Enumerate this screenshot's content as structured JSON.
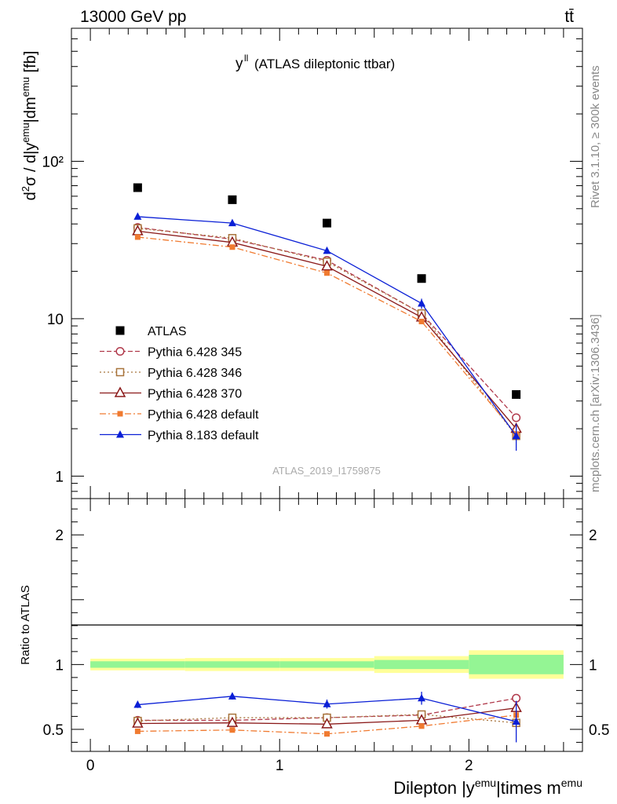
{
  "header": {
    "energy_label": "13000 GeV pp",
    "process_label": "tt̄"
  },
  "side_labels": {
    "rivet": "Rivet 3.1.10, ≥ 300k events",
    "mcplots": "mcplots.cern.ch [arXiv:1306.3436]"
  },
  "colors": {
    "atlas": "#000000",
    "p345": "#b0384a",
    "p346": "#a8743c",
    "p370": "#8b1a1a",
    "p6def": "#f07a30",
    "p8": "#0a1fd6",
    "band_inner": "#94f594",
    "band_outer": "#ffff99"
  },
  "chart_data": [
    {
      "type": "line",
      "panel": "main",
      "title_prefix": "y",
      "title_superscript": "ll",
      "title": "(ATLAS dileptonic ttbar)",
      "ylabel": "d²σ / d|y^emu|dm^emu [fb]",
      "yscale": "log",
      "ylim": [
        0.72,
        700
      ],
      "xlim": [
        -0.1,
        2.6
      ],
      "yticks": [
        {
          "value": 1,
          "label": "1"
        },
        {
          "value": 10,
          "label": "10"
        },
        {
          "value": 100,
          "label": "10²"
        }
      ],
      "watermark": "ATLAS_2019_I1759875",
      "x": [
        0.25,
        0.75,
        1.25,
        1.75,
        2.25
      ],
      "legend_position": "center-left",
      "series": [
        {
          "key": "atlas",
          "name": "ATLAS",
          "marker": "square",
          "values": [
            68,
            57,
            40.5,
            18,
            3.3
          ]
        },
        {
          "key": "p345",
          "name": "Pythia 6.428 345",
          "marker": "open-circle",
          "dash": "dashed",
          "values": [
            38,
            32,
            23.5,
            10.8,
            2.35
          ]
        },
        {
          "key": "p346",
          "name": "Pythia 6.428 346",
          "marker": "open-square",
          "dash": "dotted",
          "values": [
            37.5,
            32.5,
            23,
            10.8,
            1.8
          ]
        },
        {
          "key": "p370",
          "name": "Pythia 6.428 370",
          "marker": "open-triangle",
          "dash": "solid",
          "values": [
            36,
            30.5,
            21.5,
            10.2,
            2.0
          ]
        },
        {
          "key": "p6def",
          "name": "Pythia 6.428 default",
          "marker": "small-square",
          "dash": "dashdot",
          "values": [
            33,
            28.5,
            19.5,
            9.6,
            1.85
          ]
        },
        {
          "key": "p8",
          "name": "Pythia 8.183 default",
          "marker": "triangle",
          "dash": "solid",
          "values": [
            44.5,
            40.5,
            27,
            12.5,
            1.8
          ],
          "errors": [
            1.0,
            1.0,
            1.2,
            0.9,
            0.35
          ]
        }
      ]
    },
    {
      "type": "line",
      "panel": "ratio",
      "ylabel": "Ratio to ATLAS",
      "xlabel": "Dilepton |y^emu|times m^emu",
      "ylim": [
        0.33,
        2.28
      ],
      "xlim": [
        -0.1,
        2.6
      ],
      "yticks": [
        {
          "value": 0.5,
          "label": "0.5"
        },
        {
          "value": 1,
          "label": "1"
        },
        {
          "value": 2,
          "label": "2"
        }
      ],
      "xticks": [
        {
          "value": 0,
          "label": "0"
        },
        {
          "value": 1,
          "label": "1"
        },
        {
          "value": 2,
          "label": "2"
        }
      ],
      "x": [
        0.25,
        0.75,
        1.25,
        1.75,
        2.25
      ],
      "bands": [
        {
          "x0": 0.0,
          "x1": 0.5,
          "inner": 0.025,
          "outer": 0.045
        },
        {
          "x0": 0.5,
          "x1": 1.0,
          "inner": 0.025,
          "outer": 0.05
        },
        {
          "x0": 1.0,
          "x1": 1.5,
          "inner": 0.025,
          "outer": 0.05
        },
        {
          "x0": 1.5,
          "x1": 2.0,
          "inner": 0.035,
          "outer": 0.065
        },
        {
          "x0": 2.0,
          "x1": 2.5,
          "inner": 0.075,
          "outer": 0.11
        }
      ],
      "series": [
        {
          "key": "p345",
          "values": [
            0.57,
            0.57,
            0.59,
            0.61,
            0.74
          ],
          "errors": [
            0,
            0,
            0,
            0,
            0.03
          ]
        },
        {
          "key": "p346",
          "values": [
            0.565,
            0.59,
            0.59,
            0.615,
            0.55
          ]
        },
        {
          "key": "p370",
          "values": [
            0.545,
            0.55,
            0.54,
            0.57,
            0.665
          ]
        },
        {
          "key": "p6def",
          "values": [
            0.485,
            0.495,
            0.465,
            0.525,
            0.61
          ]
        },
        {
          "key": "p8",
          "values": [
            0.69,
            0.755,
            0.695,
            0.74,
            0.56
          ],
          "errors": [
            0.025,
            0.025,
            0.035,
            0.05,
            0.16
          ]
        }
      ]
    }
  ]
}
